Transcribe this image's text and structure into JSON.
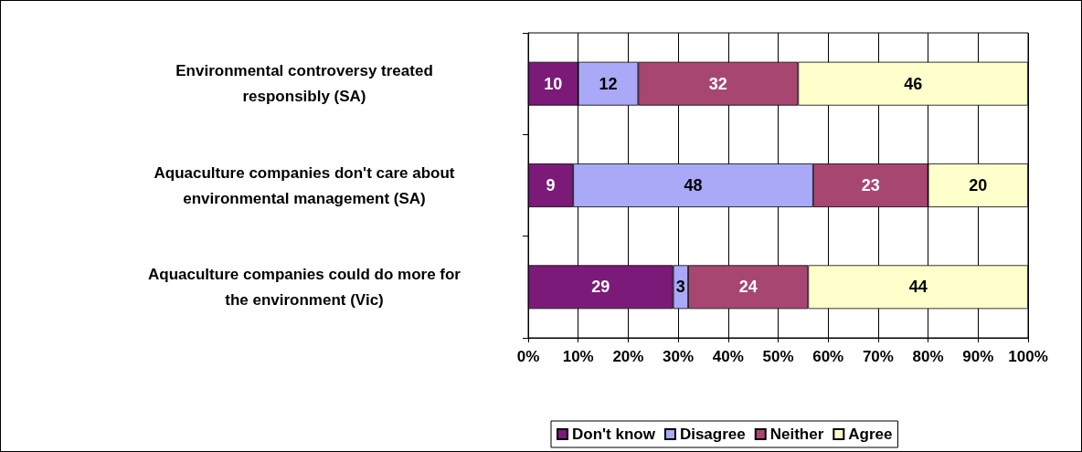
{
  "chart_data": {
    "type": "bar",
    "orientation": "horizontal",
    "stacked": true,
    "data_labels": true,
    "grid": "x",
    "legend": "bottom",
    "categories": [
      "Environmental controversy treated responsibly (SA)",
      "Aquaculture companies don't care about environmental management (SA)",
      "Aquaculture companies could do more for the environment (Vic)"
    ],
    "series": [
      {
        "name": "Don't know",
        "color": "#7b1a78",
        "values": [
          10,
          9,
          29
        ]
      },
      {
        "name": "Disagree",
        "color": "#a9a9f8",
        "values": [
          12,
          48,
          3
        ]
      },
      {
        "name": "Neither",
        "color": "#a84672",
        "values": [
          32,
          23,
          24
        ]
      },
      {
        "name": "Agree",
        "color": "#ffffcc",
        "values": [
          46,
          20,
          44
        ]
      }
    ],
    "xlim": [
      0,
      100
    ],
    "xticks": [
      {
        "value": 0,
        "label": "0%"
      },
      {
        "value": 10,
        "label": "10%"
      },
      {
        "value": 20,
        "label": "20%"
      },
      {
        "value": 30,
        "label": "30%"
      },
      {
        "value": 40,
        "label": "40%"
      },
      {
        "value": 50,
        "label": "50%"
      },
      {
        "value": 60,
        "label": "60%"
      },
      {
        "value": 70,
        "label": "70%"
      },
      {
        "value": 80,
        "label": "80%"
      },
      {
        "value": 90,
        "label": "90%"
      },
      {
        "value": 100,
        "label": "100%"
      }
    ]
  }
}
